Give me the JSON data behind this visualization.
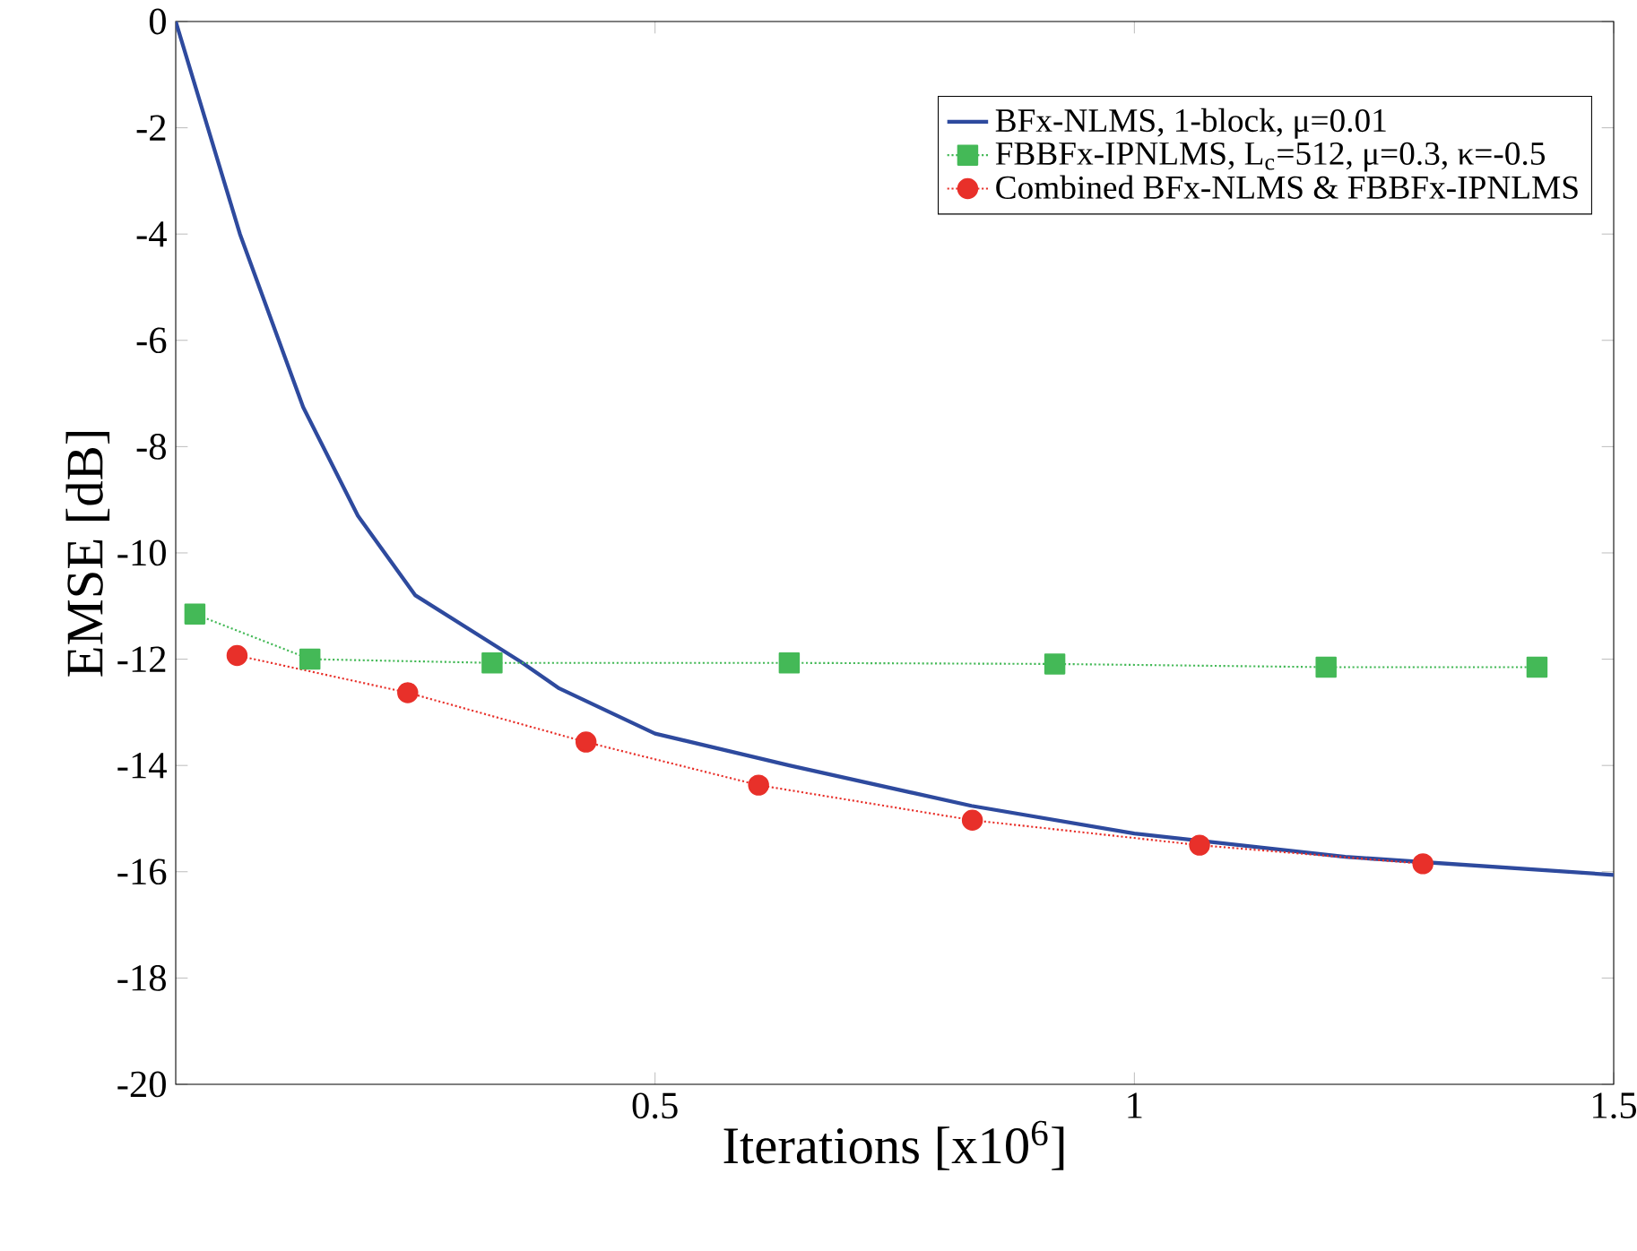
{
  "chart_data": {
    "type": "line",
    "xlabel": "Iterations [x10$^{6}$]",
    "ylabel": "EMSE [dB]",
    "xlim": [
      0,
      1.5
    ],
    "ylim": [
      -20,
      0
    ],
    "xticks": [
      0.5,
      1,
      1.5
    ],
    "yticks": [
      -20,
      -18,
      -16,
      -14,
      -12,
      -10,
      -8,
      -6,
      -4,
      -2,
      0
    ],
    "legend": "top right",
    "grid": false,
    "series": [
      {
        "name": "BFx-NLMS, 1-block, μ=0.01",
        "color": "#2e4a9e",
        "marker": "none",
        "line_style": "solid",
        "x": [
          0,
          0.067,
          0.133,
          0.19,
          0.25,
          0.36,
          0.4,
          0.5,
          0.64,
          0.83,
          1.0,
          1.22,
          1.5
        ],
        "values": [
          0,
          -4,
          -7.26,
          -9.3,
          -10.8,
          -12.05,
          -12.55,
          -13.4,
          -14.0,
          -14.76,
          -15.28,
          -15.72,
          -16.06
        ]
      },
      {
        "name": "FBBFx-IPNLMS, L$_{c}$=512, μ=0.3, κ=-0.5",
        "color": "#44b957",
        "marker": "square",
        "line_style": "dotted",
        "x": [
          0.02,
          0.14,
          0.33,
          0.64,
          0.917,
          1.2,
          1.42
        ],
        "values": [
          -11.15,
          -12.0,
          -12.07,
          -12.07,
          -12.09,
          -12.15,
          -12.15
        ]
      },
      {
        "name": "Combined BFx-NLMS & FBBFx-IPNLMS",
        "color": "#e8302a",
        "marker": "circle",
        "line_style": "dotted",
        "x": [
          0.064,
          0.242,
          0.428,
          0.608,
          0.831,
          1.068,
          1.301
        ],
        "values": [
          -11.93,
          -12.63,
          -13.56,
          -14.37,
          -15.03,
          -15.5,
          -15.85
        ]
      }
    ]
  }
}
